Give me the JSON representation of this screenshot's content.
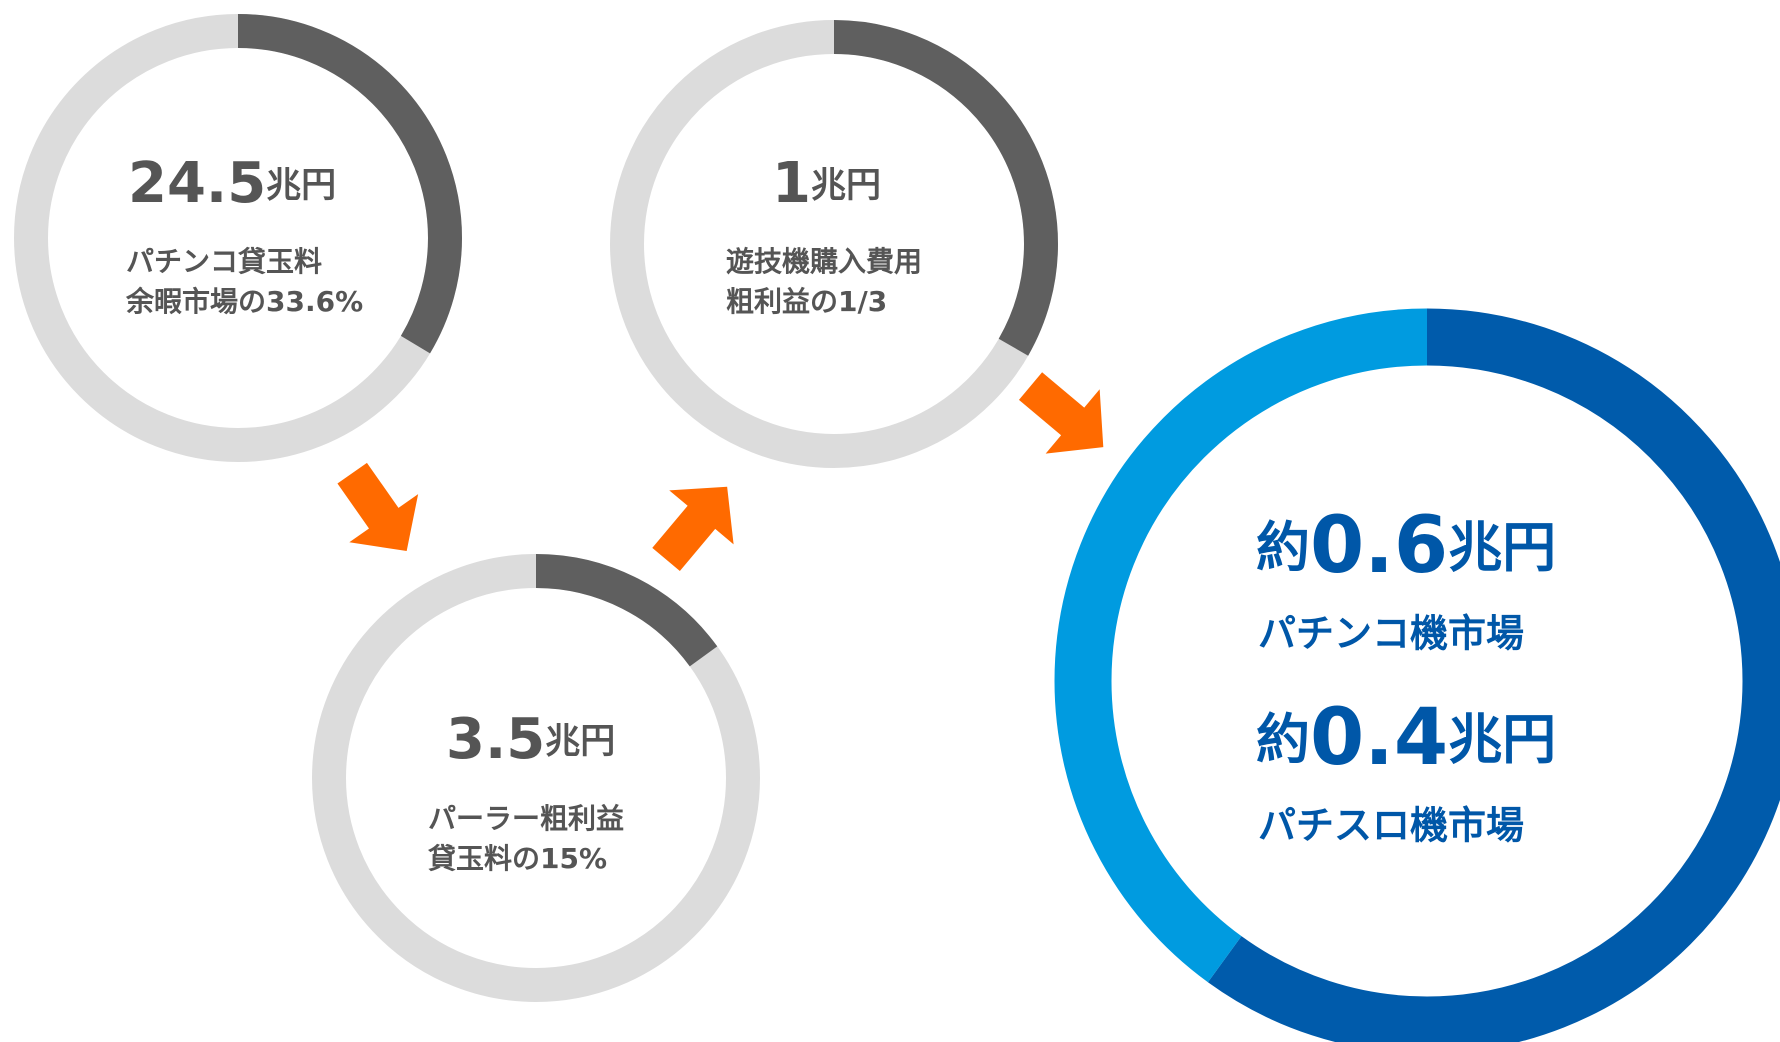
{
  "unit": "兆円",
  "rings": [
    {
      "amount": 24.5,
      "label": [
        "パチンコ貸玉料",
        "余暇市場の33.6%"
      ],
      "share": 33.6
    },
    {
      "amount": 3.5,
      "label": [
        "パーラー粗利益",
        "貸玉料の15%"
      ],
      "share": 15
    },
    {
      "amount": 1,
      "label": [
        "遊技機購入費用",
        "粗利益の1/3"
      ],
      "share": 33.3
    }
  ],
  "market": {
    "prefix": "約",
    "segments": [
      {
        "amount": 0.6,
        "label": "パチンコ機市場",
        "color": "#005bab"
      },
      {
        "amount": 0.4,
        "label": "パチスロ機市場",
        "color": "#009be0"
      }
    ]
  }
}
